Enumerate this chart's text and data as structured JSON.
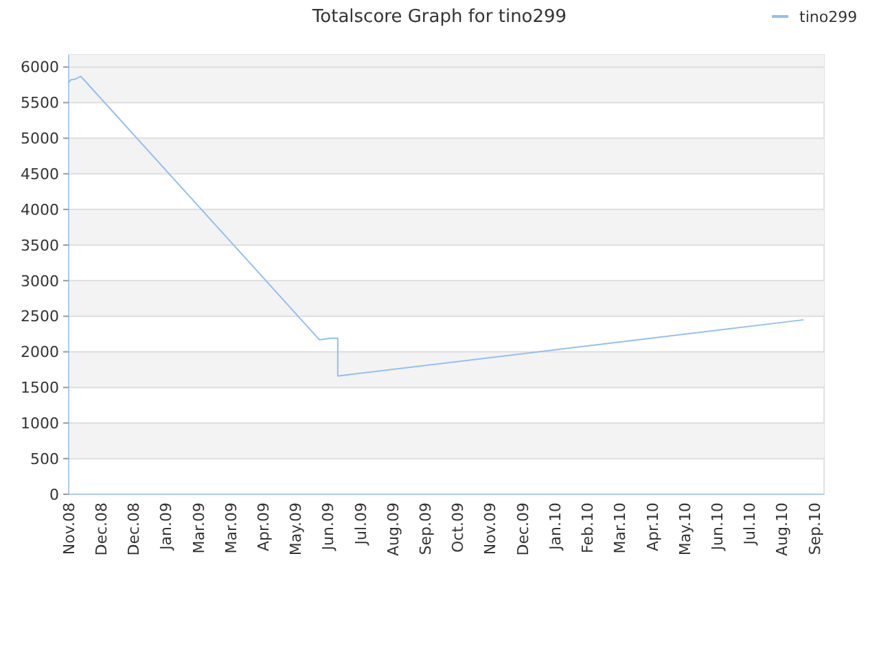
{
  "chart_data": {
    "type": "line",
    "title": "Totalscore Graph for tino299",
    "x": [
      "2008-11-01",
      "2008-11-03",
      "2008-11-07",
      "2008-11-12",
      "2008-11-14",
      "2009-06-21",
      "2009-07-01",
      "2009-07-08",
      "2009-07-08",
      "2010-09-12"
    ],
    "xlim": [
      "2008-11-01",
      "2010-10-01"
    ],
    "xticks": [
      {
        "value": "2008-11-01",
        "label": "Nov.08"
      },
      {
        "value": "2008-12-01",
        "label": "Dec.08"
      },
      {
        "value": "2008-12-31",
        "label": "Dec.08"
      },
      {
        "value": "2009-01-30",
        "label": "Jan.09"
      },
      {
        "value": "2009-03-01",
        "label": "Mar.09"
      },
      {
        "value": "2009-03-31",
        "label": "Mar.09"
      },
      {
        "value": "2009-04-30",
        "label": "Apr.09"
      },
      {
        "value": "2009-05-30",
        "label": "May.09"
      },
      {
        "value": "2009-06-29",
        "label": "Jun.09"
      },
      {
        "value": "2009-07-29",
        "label": "Jul.09"
      },
      {
        "value": "2009-08-28",
        "label": "Aug.09"
      },
      {
        "value": "2009-09-27",
        "label": "Sep.09"
      },
      {
        "value": "2009-10-27",
        "label": "Oct.09"
      },
      {
        "value": "2009-11-26",
        "label": "Nov.09"
      },
      {
        "value": "2009-12-26",
        "label": "Dec.09"
      },
      {
        "value": "2010-01-25",
        "label": "Jan.10"
      },
      {
        "value": "2010-02-24",
        "label": "Feb.10"
      },
      {
        "value": "2010-03-26",
        "label": "Mar.10"
      },
      {
        "value": "2010-04-25",
        "label": "Apr.10"
      },
      {
        "value": "2010-05-25",
        "label": "May.10"
      },
      {
        "value": "2010-06-24",
        "label": "Jun.10"
      },
      {
        "value": "2010-07-24",
        "label": "Jul.10"
      },
      {
        "value": "2010-08-23",
        "label": "Aug.10"
      },
      {
        "value": "2010-09-22",
        "label": "Sep.10"
      }
    ],
    "series": [
      {
        "name": "tino299",
        "color": "#90c0f0",
        "values": [
          5780,
          5820,
          5830,
          5870,
          5840,
          2170,
          2190,
          2190,
          1660,
          2450
        ]
      }
    ],
    "ylim": [
      0,
      6170
    ],
    "yticks": [
      0,
      500,
      1000,
      1500,
      2000,
      2500,
      3000,
      3500,
      4000,
      4500,
      5000,
      5500,
      6000
    ],
    "grid": "y",
    "legend": "top right"
  }
}
